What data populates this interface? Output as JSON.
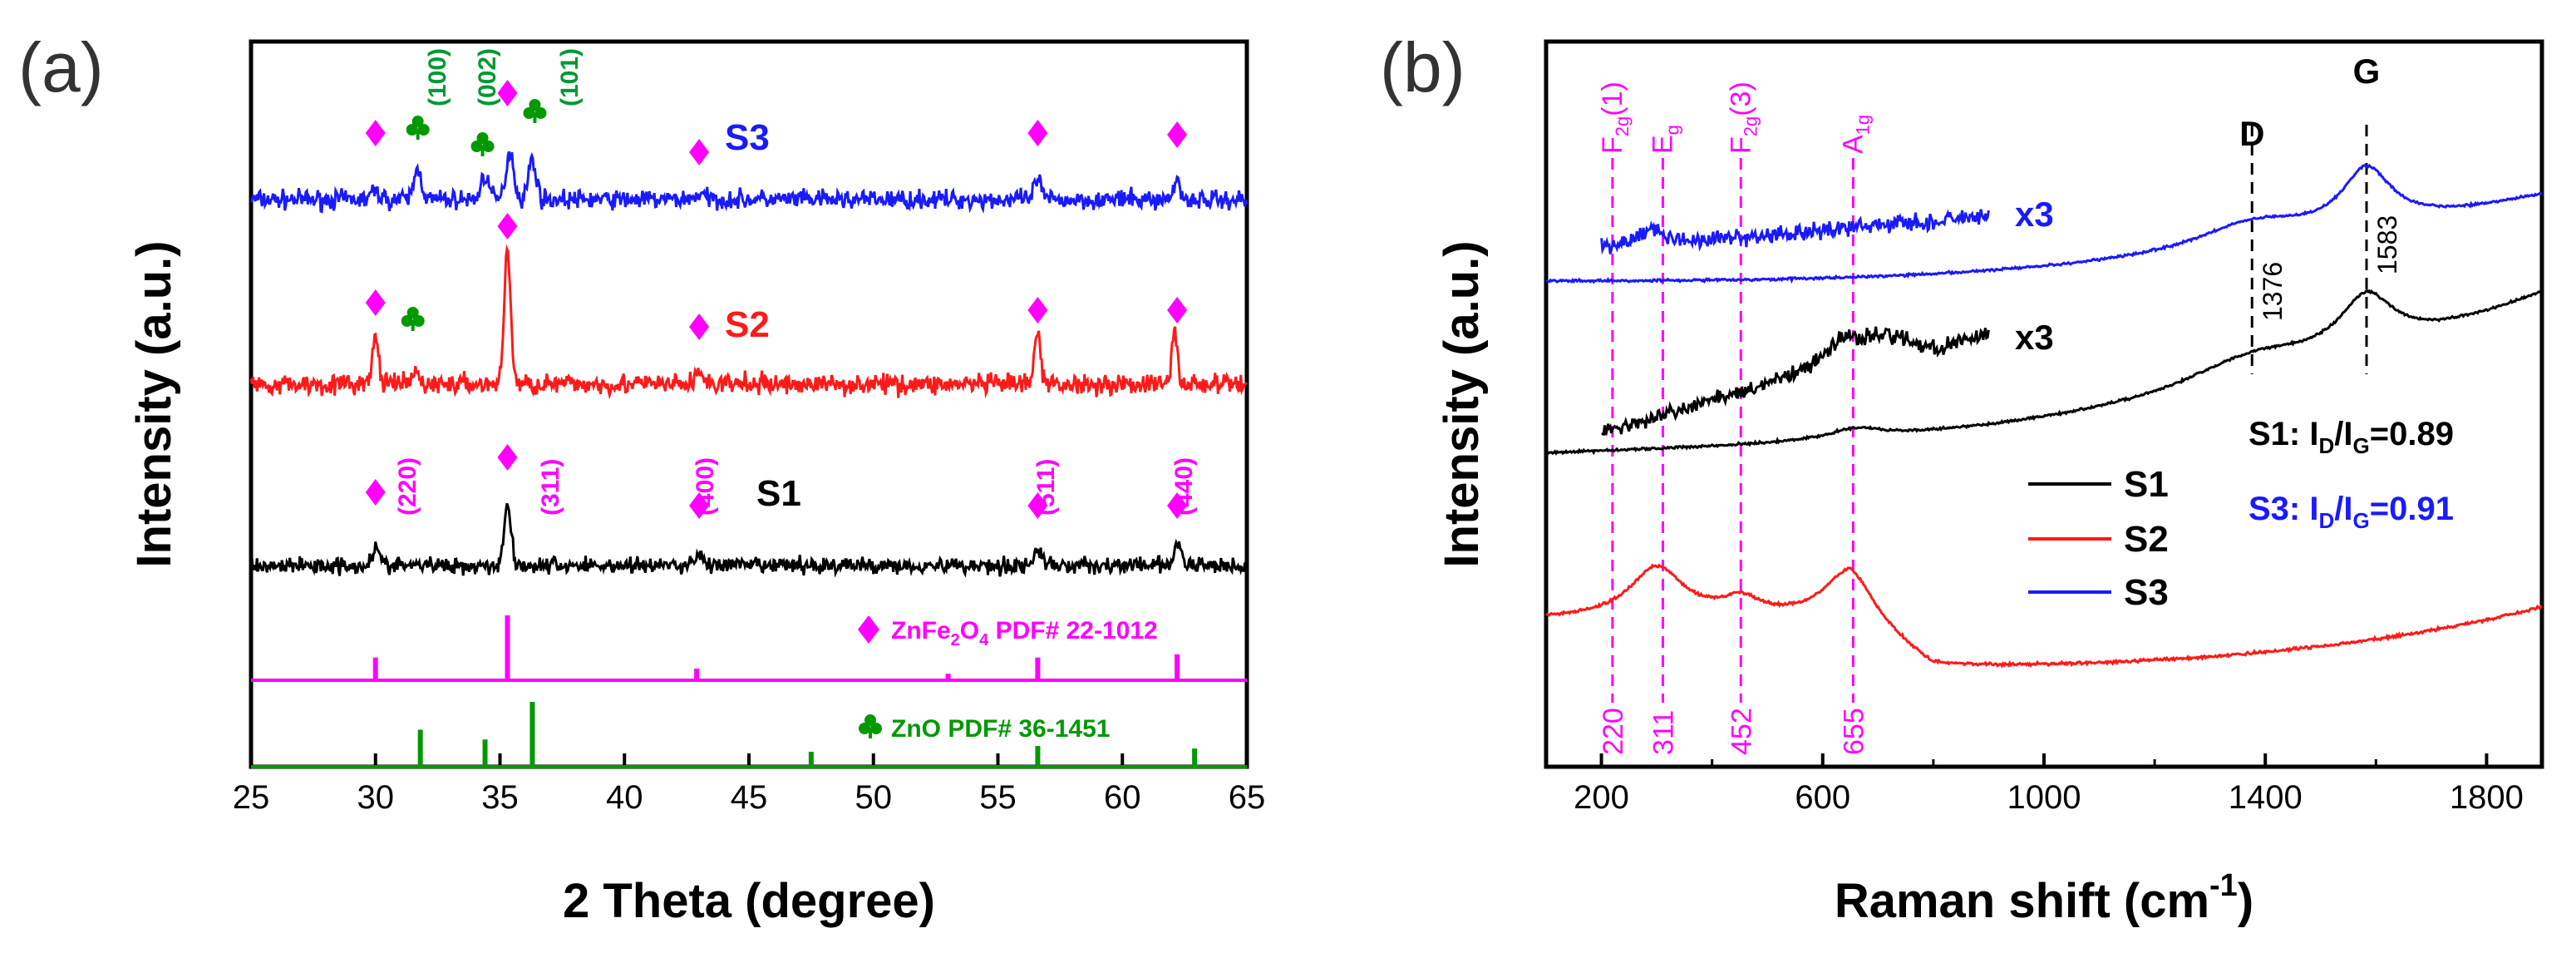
{
  "chart_data": [
    {
      "panel": "(a)",
      "type": "line",
      "xlabel": "2 Theta (degree)",
      "ylabel": "Intensity (a.u.)",
      "xlim": [
        25,
        65
      ],
      "xticks": [
        25,
        30,
        35,
        40,
        45,
        50,
        55,
        60,
        65
      ],
      "series": [
        {
          "name": "S3",
          "color": "#1a1aff",
          "noise": 0.28,
          "peaks": [
            [
              30.0,
              0.25,
              0.25
            ],
            [
              31.7,
              0.9,
              0.22
            ],
            [
              34.4,
              0.75,
              0.22
            ],
            [
              35.4,
              1.45,
              0.22
            ],
            [
              36.3,
              1.2,
              0.22
            ],
            [
              43.0,
              0.15,
              0.3
            ],
            [
              56.6,
              0.65,
              0.18
            ],
            [
              62.2,
              0.6,
              0.18
            ]
          ]
        },
        {
          "name": "S2",
          "color": "#ff1a1a",
          "noise": 0.22,
          "peaks": [
            [
              30.0,
              1.0,
              0.18
            ],
            [
              31.6,
              0.25,
              0.2
            ],
            [
              35.3,
              3.0,
              0.18
            ],
            [
              43.0,
              0.3,
              0.2
            ],
            [
              56.6,
              1.2,
              0.16
            ],
            [
              62.1,
              1.15,
              0.16
            ]
          ]
        },
        {
          "name": "S1",
          "color": "#000000",
          "noise": 0.22,
          "peaks": [
            [
              30.0,
              0.5,
              0.2
            ],
            [
              35.3,
              1.6,
              0.2
            ],
            [
              43.0,
              0.3,
              0.25
            ],
            [
              56.6,
              0.45,
              0.2
            ],
            [
              62.2,
              0.55,
              0.2
            ]
          ]
        }
      ],
      "reference_patterns": [
        {
          "name": "ZnFe2O4 PDF# 22-1012",
          "color": "#ff00ff",
          "lines": [
            [
              30.0,
              0.35
            ],
            [
              35.3,
              1.0
            ],
            [
              42.9,
              0.18
            ],
            [
              53.0,
              0.1
            ],
            [
              56.6,
              0.35
            ],
            [
              62.2,
              0.4
            ]
          ]
        },
        {
          "name": "ZnO PDF# 36-1451",
          "color": "#009900",
          "lines": [
            [
              31.8,
              0.57
            ],
            [
              34.4,
              0.42
            ],
            [
              36.3,
              1.0
            ],
            [
              47.5,
              0.23
            ],
            [
              56.6,
              0.32
            ],
            [
              62.9,
              0.28
            ]
          ]
        }
      ],
      "annotations": {
        "spinel_hkl": [
          "(220)",
          "(311)",
          "(400)",
          "(511)",
          "(440)"
        ],
        "zno_hkl": [
          "(100)",
          "(002)",
          "(101)"
        ]
      },
      "series_labels": [
        "S3",
        "S2",
        "S1"
      ],
      "ref_label_znfe2o4": {
        "pre": "ZnFe",
        "sub1": "2",
        "mid": "O",
        "sub2": "4",
        "post": " PDF# 22-1012"
      },
      "ref_label_zno": "ZnO PDF# 36-1451"
    },
    {
      "panel": "(b)",
      "type": "line",
      "xlabel": "Raman shift (cm",
      "xlabel_sup": "-1",
      "xlabel_close": ")",
      "ylabel": "Intensity (a.u.)",
      "xlim": [
        100,
        1900
      ],
      "xticks": [
        200,
        600,
        1000,
        1400,
        1800
      ],
      "series": [
        {
          "name": "S1",
          "color": "#000000",
          "noise": 0.1
        },
        {
          "name": "S2",
          "color": "#ff1a1a",
          "noise": 0.12
        },
        {
          "name": "S3",
          "color": "#1a1aff",
          "noise": 0.1
        }
      ],
      "zoom_series": [
        {
          "label": "x3",
          "color": "#000000",
          "range": [
            200,
            900
          ]
        },
        {
          "label": "x3",
          "color": "#1a1aff",
          "range": [
            200,
            900
          ]
        }
      ],
      "raman_modes": [
        {
          "label": "F",
          "sub": "2g",
          "post": "(1)",
          "x": 220,
          "value_label": "220"
        },
        {
          "label": "E",
          "sub": "g",
          "post": "",
          "x": 311,
          "value_label": "311"
        },
        {
          "label": "F",
          "sub": "2g",
          "post": "(3)",
          "x": 452,
          "value_label": "452"
        },
        {
          "label": "A",
          "sub": "1g",
          "post": "",
          "x": 655,
          "value_label": "655"
        }
      ],
      "carbon_bands": [
        {
          "label": "D",
          "x": 1376,
          "value_label": "1376"
        },
        {
          "label": "G",
          "x": 1583,
          "value_label": "1583"
        }
      ],
      "legend": [
        "S1",
        "S2",
        "S3"
      ],
      "ratio_labels": [
        {
          "sample": "S1: I",
          "d": "D",
          "slash": "/I",
          "g": "G",
          "value": "=0.89",
          "color": "#000000"
        },
        {
          "sample": "S3: I",
          "d": "D",
          "slash": "/I",
          "g": "G",
          "value": "=0.91",
          "color": "#1a1aff"
        }
      ]
    }
  ],
  "colors": {
    "axis": "#000000",
    "magenta": "#ff00ff",
    "green": "#009900",
    "blue": "#1a1aff",
    "red": "#ff1a1a"
  }
}
